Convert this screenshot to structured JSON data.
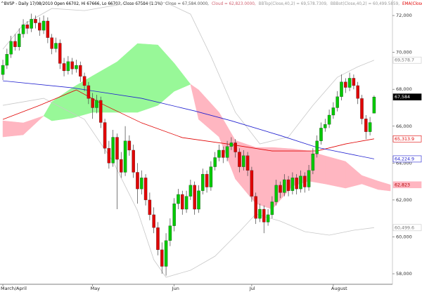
{
  "chart_data": {
    "type": "candlestick",
    "legend": [
      {
        "text": "^BVSP - Daily 17/08/2010 Open 66702, Hi 67666, Lo 66702, Close 67584 (1.3%)",
        "color": "#000000"
      },
      {
        "text": "Close = 67,584.0000,",
        "color": "#555555"
      },
      {
        "text": "Cloud = 62,823.0000,",
        "color": "#d06070"
      },
      {
        "text": "BBTop(Close,40,2) = 69,578.7309,",
        "color": "#999999"
      },
      {
        "text": "BBBot(Close,40,2) = 60,499.5859,",
        "color": "#999999"
      },
      {
        "text": "EMA(Close,",
        "color": "#e00000"
      }
    ],
    "categories": [
      "March/April",
      null,
      null,
      null,
      null,
      null,
      null,
      null,
      null,
      null,
      null,
      null,
      null,
      null,
      null,
      null,
      null,
      null,
      null,
      null,
      null,
      null,
      "May",
      null,
      null,
      null,
      null,
      null,
      null,
      null,
      null,
      null,
      null,
      null,
      null,
      null,
      null,
      null,
      null,
      null,
      null,
      null,
      "Jun",
      null,
      null,
      null,
      null,
      null,
      null,
      null,
      null,
      null,
      null,
      null,
      null,
      null,
      null,
      null,
      null,
      null,
      null,
      "Jul",
      null,
      null,
      null,
      null,
      null,
      null,
      null,
      null,
      null,
      null,
      null,
      null,
      null,
      null,
      null,
      null,
      null,
      null,
      null,
      "August",
      null,
      null,
      null,
      null,
      null,
      null,
      null,
      null,
      null,
      null
    ],
    "xlim": [
      -0.7,
      95.5
    ],
    "ylim": [
      57430,
      72840
    ],
    "yticks": [
      {
        "value": 58000,
        "label": "58,000"
      },
      {
        "value": 60000,
        "label": "60,000"
      },
      {
        "value": 62000,
        "label": "62,000"
      },
      {
        "value": 64000,
        "label": "64,000"
      },
      {
        "value": 66000,
        "label": "66,000"
      },
      {
        "value": 68000,
        "label": "68,000"
      },
      {
        "value": 70000,
        "label": "70,000"
      },
      {
        "value": 72000,
        "label": "72,000"
      }
    ],
    "up_color": "#00c800",
    "down_color": "#e00000",
    "candles": {
      "open": [
        68800,
        69300,
        69900,
        70600,
        70300,
        71000,
        71500,
        71300,
        71800,
        71600,
        71200,
        71700,
        70800,
        70200,
        70500,
        69400,
        69000,
        69500,
        69100,
        69300,
        68700,
        68200,
        67500,
        67000,
        67400,
        66200,
        64800,
        64000,
        65400,
        64200,
        63500,
        65200,
        64700,
        63500,
        62600,
        63200,
        62000,
        61200,
        60500,
        59300,
        58400,
        59800,
        60600,
        61800,
        62300,
        61500,
        62200,
        62800,
        61500,
        62500,
        63400,
        62700,
        63800,
        64300,
        64700,
        64300,
        64900,
        65100,
        64600,
        63800,
        64400,
        63600,
        62200,
        61000,
        61500,
        60800,
        61200,
        61900,
        62800,
        62400,
        63100,
        62500,
        63200,
        62600,
        63300,
        62700,
        63600,
        64500,
        65200,
        65900,
        66100,
        66600,
        67000,
        67600,
        68400,
        68100,
        68600,
        68200,
        67500,
        66400,
        65700,
        66702
      ],
      "high": [
        69600,
        70200,
        70900,
        71000,
        71300,
        71800,
        71700,
        72100,
        72000,
        71900,
        72000,
        71900,
        71000,
        70800,
        70700,
        69700,
        69800,
        69700,
        69600,
        69500,
        68900,
        68400,
        67800,
        67700,
        67600,
        66400,
        65200,
        65800,
        65600,
        64600,
        66000,
        65500,
        65000,
        64000,
        63600,
        63400,
        62400,
        61600,
        60800,
        59700,
        60200,
        61000,
        62100,
        62600,
        62500,
        62500,
        63100,
        63000,
        62800,
        63700,
        63600,
        64100,
        64600,
        65000,
        64900,
        65200,
        65400,
        65300,
        64800,
        64700,
        64600,
        63800,
        62400,
        61800,
        61700,
        61500,
        62200,
        63100,
        63000,
        63400,
        63300,
        63500,
        63400,
        63600,
        63500,
        63900,
        64800,
        65500,
        66200,
        66400,
        66900,
        67300,
        67900,
        68800,
        68600,
        68900,
        68800,
        68400,
        67700,
        66600,
        66500,
        67666
      ],
      "low": [
        68500,
        69100,
        69700,
        70100,
        70100,
        70800,
        71000,
        71100,
        71300,
        70900,
        71000,
        70500,
        69900,
        70000,
        69100,
        68700,
        68800,
        68800,
        68900,
        68400,
        67900,
        67200,
        66400,
        66700,
        65900,
        64500,
        63700,
        63800,
        61500,
        63200,
        63300,
        64400,
        63200,
        61800,
        62300,
        61700,
        60900,
        60200,
        59000,
        58000,
        57900,
        59500,
        60300,
        61500,
        61200,
        61300,
        62000,
        61200,
        61300,
        62300,
        62400,
        62500,
        63600,
        64100,
        64000,
        64100,
        64700,
        64300,
        63500,
        63600,
        63300,
        61900,
        60700,
        60800,
        60200,
        60600,
        61000,
        61700,
        62100,
        62200,
        62200,
        62300,
        62300,
        62400,
        62400,
        62500,
        63400,
        64300,
        65000,
        65700,
        65900,
        66400,
        66800,
        67400,
        67800,
        67900,
        68000,
        67200,
        66100,
        65300,
        65500,
        66702
      ],
      "close": [
        69300,
        69900,
        70600,
        70300,
        71000,
        71500,
        71300,
        71800,
        71600,
        71200,
        71700,
        70800,
        70200,
        70500,
        69400,
        69000,
        69500,
        69100,
        69300,
        68700,
        68200,
        67500,
        67000,
        67400,
        66200,
        64800,
        64000,
        65400,
        64200,
        63500,
        65200,
        64700,
        63500,
        62600,
        63200,
        62000,
        61200,
        60500,
        59300,
        58400,
        59800,
        60600,
        61800,
        62300,
        61500,
        62200,
        62800,
        61500,
        62500,
        63400,
        62700,
        63800,
        64300,
        64700,
        64300,
        64900,
        65100,
        64600,
        63800,
        64400,
        63600,
        62200,
        61000,
        61500,
        60800,
        61200,
        61900,
        62800,
        62400,
        63100,
        62500,
        63200,
        62600,
        63300,
        62700,
        63600,
        64500,
        65200,
        65900,
        66100,
        66600,
        67000,
        67600,
        68400,
        68100,
        68600,
        68200,
        67500,
        66400,
        65700,
        66200,
        67584
      ],
      "last_label": "67,584",
      "label_bg": "#000000",
      "label_color": "#ffffff"
    },
    "cloud": {
      "x": [
        0,
        5,
        10,
        12,
        17,
        22,
        28,
        33,
        38,
        42,
        46,
        48,
        53,
        57,
        62,
        66,
        71,
        75,
        79,
        84,
        88,
        92,
        95
      ],
      "span_a": [
        65418,
        65532,
        66559,
        67320,
        68081,
        68728,
        69489,
        70478,
        70402,
        69413,
        68272,
        66369,
        65418,
        63136,
        61804,
        61500,
        62756,
        63022,
        62870,
        62641,
        62870,
        62565,
        62489
      ],
      "span_b": [
        66293,
        66179,
        66559,
        66293,
        66445,
        66750,
        66750,
        66750,
        67130,
        67891,
        68272,
        67967,
        66750,
        65228,
        64848,
        64848,
        64771,
        64657,
        64391,
        64087,
        63326,
        63022,
        62823
      ],
      "up_color": "#98f898",
      "down_color": "#ffb6c1",
      "last_label": "62,823",
      "label_bg": "#ffb6c1",
      "label_color": "#b00000"
    },
    "lines": [
      {
        "color": "#c8c8c8",
        "x": [
          0,
          5,
          12,
          20,
          30,
          40,
          46,
          51,
          57,
          63,
          70,
          76,
          82,
          87,
          91
        ],
        "values": [
          70173,
          71505,
          72380,
          72265,
          72646,
          72700,
          72075,
          69793,
          66750,
          65038,
          65418,
          67130,
          68652,
          69222,
          69578.7
        ],
        "last_label": "69,578.7",
        "label_bg": "#ffffff",
        "label_color": "#777777"
      },
      {
        "color": "#c8c8c8",
        "x": [
          0,
          10,
          20,
          27,
          33,
          37,
          40,
          46,
          52,
          58,
          62,
          68,
          74,
          80,
          86,
          91
        ],
        "values": [
          67130,
          67510,
          66369,
          64087,
          61424,
          58761,
          57810,
          58190,
          58951,
          60283,
          61234,
          60853,
          60283,
          60093,
          60359,
          60499.6
        ],
        "last_label": "60,499.6",
        "label_bg": "#ffffff",
        "label_color": "#777777"
      },
      {
        "color": "#e00000",
        "x": [
          0,
          9,
          18,
          25,
          34,
          44,
          55,
          66,
          77,
          84,
          91
        ],
        "values": [
          66369,
          67130,
          67967,
          67130,
          66179,
          65380,
          65038,
          64657,
          64657,
          65038,
          65313.9
        ],
        "last_label": "65,313.9",
        "label_bg": "#ffffff",
        "label_color": "#e00000"
      },
      {
        "color": "#2020d0",
        "x": [
          0,
          17,
          34,
          47,
          56,
          68,
          77,
          91
        ],
        "values": [
          68461,
          68081,
          67510,
          66826,
          66293,
          65494,
          64848,
          64224.9
        ],
        "last_label": "64,224.9",
        "label_bg": "#ffffff",
        "label_color": "#2020d0"
      }
    ]
  }
}
